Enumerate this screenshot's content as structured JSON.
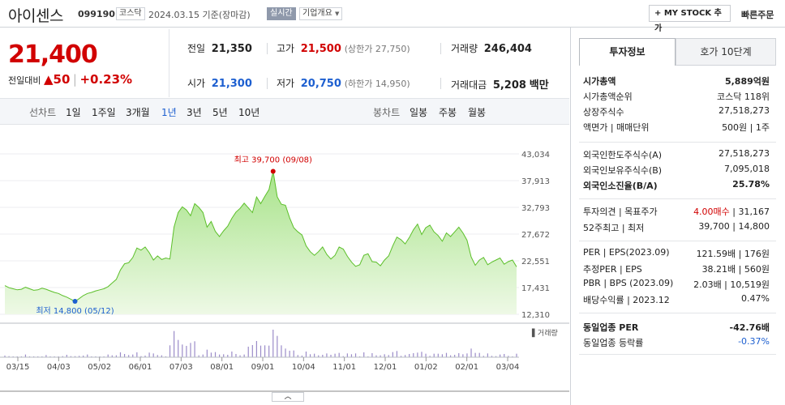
{
  "header": {
    "name": "아이센스",
    "code": "099190",
    "market": "코스닥",
    "date": "2024.03.15 기준(장마감)",
    "realtime": "실시간",
    "overview": "기업개요",
    "mystock": "+ MY STOCK 추가",
    "quickorder": "빠른주문"
  },
  "price": {
    "current": "21,400",
    "change_label": "전일대비",
    "change": "50",
    "rate": "+0.23%"
  },
  "summary": {
    "prev_label": "전일",
    "prev": "21,350",
    "high_label": "고가",
    "high": "21,500",
    "upper": "(상한가 27,750)",
    "volume_label": "거래량",
    "volume": "246,404",
    "open_label": "시가",
    "open": "21,300",
    "low_label": "저가",
    "low": "20,750",
    "lower": "(하한가 14,950)",
    "amount_label": "거래대금",
    "amount": "5,208",
    "amount_unit": "백만"
  },
  "range": {
    "line_label": "선차트",
    "items": [
      "1일",
      "1주일",
      "3개월",
      "1년",
      "3년",
      "5년",
      "10년"
    ],
    "active": "1년",
    "candle_label": "봉차트",
    "candles": [
      "일봉",
      "주봉",
      "월봉"
    ]
  },
  "chart_data": {
    "type": "area",
    "y_ticks": [
      "43,034",
      "37,913",
      "32,793",
      "27,672",
      "22,551",
      "17,431",
      "12,310"
    ],
    "ylim": [
      12310,
      43034
    ],
    "x_ticks": [
      "03/15",
      "04/03",
      "05/02",
      "06/01",
      "07/03",
      "08/01",
      "09/01",
      "10/04",
      "11/01",
      "12/01",
      "01/02",
      "02/01",
      "03/04"
    ],
    "max_label": "최고 39,700 (09/08)",
    "min_label": "최저 14,800 (05/12)",
    "volume_label": "거래량",
    "values": [
      17800,
      17400,
      17200,
      17000,
      17100,
      17500,
      17200,
      16900,
      17000,
      17300,
      17100,
      16800,
      16500,
      16300,
      15900,
      15600,
      15200,
      14800,
      15300,
      15900,
      16300,
      16500,
      16800,
      17000,
      17200,
      17600,
      18300,
      19000,
      20800,
      22000,
      22200,
      23200,
      25000,
      24600,
      25200,
      24100,
      22700,
      23500,
      22800,
      23100,
      22900,
      29000,
      31800,
      32900,
      32300,
      31200,
      33500,
      32800,
      31800,
      29000,
      30100,
      28200,
      27200,
      28300,
      29200,
      30700,
      31900,
      32600,
      33600,
      32700,
      31800,
      34800,
      33500,
      34900,
      36200,
      39700,
      34800,
      33400,
      33200,
      30800,
      28900,
      28100,
      27500,
      25400,
      24300,
      23600,
      24300,
      25200,
      23800,
      22900,
      23600,
      25200,
      24800,
      23400,
      22300,
      21500,
      21800,
      23600,
      23900,
      22400,
      22300,
      21600,
      22700,
      23500,
      25400,
      27100,
      26600,
      25800,
      27000,
      28500,
      29600,
      27600,
      28900,
      29400,
      28100,
      27400,
      26300,
      27900,
      27200,
      28100,
      29000,
      27900,
      26500,
      23300,
      21700,
      22700,
      23200,
      21800,
      22300,
      22700,
      23100,
      21900,
      22400,
      22700,
      21400
    ]
  },
  "info": {
    "tab_active": "투자정보",
    "tab_other": "호가 10단계",
    "rows1": [
      {
        "k": "시가총액",
        "v": "5,889억원",
        "bold": true
      },
      {
        "k": "시가총액순위",
        "v": "코스닥 118위"
      },
      {
        "k": "상장주식수",
        "v": "27,518,273"
      },
      {
        "k": "액면가 | 매매단위",
        "v": "500원 | 1주"
      }
    ],
    "rows2": [
      {
        "k": "외국인한도주식수(A)",
        "v": "27,518,273"
      },
      {
        "k": "외국인보유주식수(B)",
        "v": "7,095,018"
      },
      {
        "k": "외국인소진율(B/A)",
        "v": "25.78%",
        "bold": true
      }
    ],
    "opinion_k": "투자의견 | 목표주가",
    "opinion_buy": "4.00매수",
    "opinion_target": "| 31,167",
    "w52_k": "52주최고 | 최저",
    "w52_v": "39,700 | 14,800",
    "rows3": [
      {
        "k": "PER | EPS(2023.09)",
        "v": "121.59배 | 176원"
      },
      {
        "k": "추정PER | EPS",
        "v": "38.21배 | 560원"
      },
      {
        "k": "PBR | BPS (2023.09)",
        "v": "2.03배 | 10,519원"
      },
      {
        "k": "배당수익률 | 2023.12",
        "v": "0.47%"
      }
    ],
    "sector_per_k": "동일업종 PER",
    "sector_per_v": "-42.76배",
    "sector_rate_k": "동일업종 등락률",
    "sector_rate_v": "-0.37%"
  }
}
